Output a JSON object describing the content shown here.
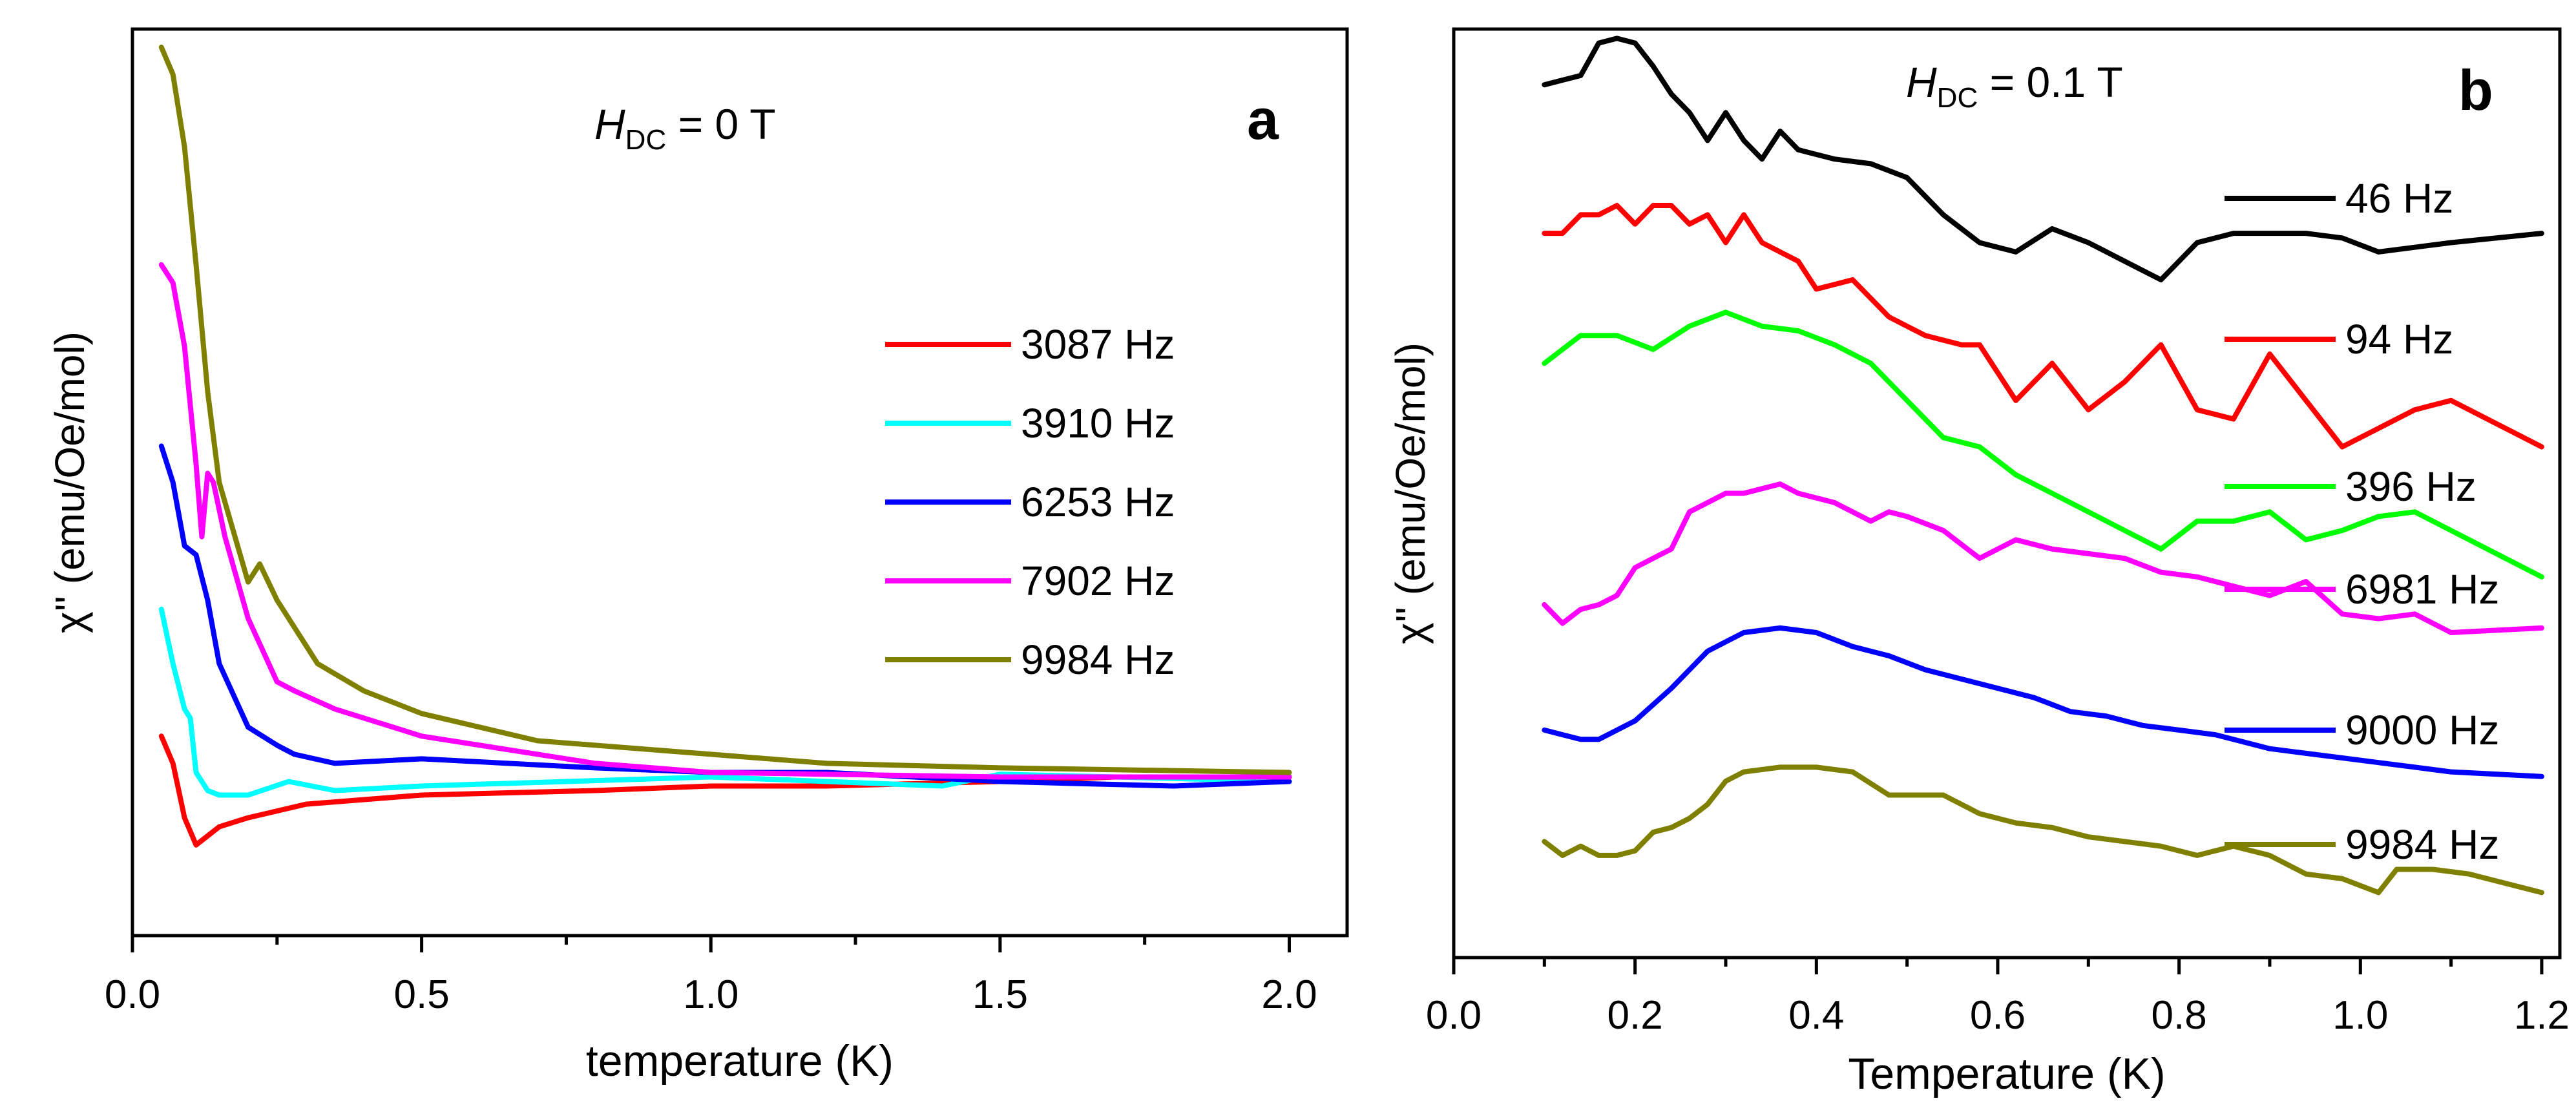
{
  "chart_data": [
    {
      "type": "line",
      "panel_label": "a",
      "annotation": {
        "symbol": "H",
        "subscript": "DC",
        "rest": " = 0 T"
      },
      "xlabel": "temperature (K)",
      "ylabel": "χ'' (emu/Oe/mol)",
      "xlim": [
        0.0,
        2.1
      ],
      "ylim": [
        0.0,
        1.0
      ],
      "xticks": [
        "0.0",
        "0.5",
        "1.0",
        "1.5",
        "2.0"
      ],
      "xtick_values": [
        0.0,
        0.5,
        1.0,
        1.5,
        2.0
      ],
      "y_ticklabels_shown": false,
      "legend_position": "center-right",
      "series": [
        {
          "name": "3087 Hz",
          "color": "#ff0000",
          "x": [
            0.05,
            0.07,
            0.09,
            0.11,
            0.13,
            0.15,
            0.2,
            0.3,
            0.5,
            0.8,
            1.0,
            1.2,
            1.5,
            1.7,
            2.0
          ],
          "y": [
            0.22,
            0.19,
            0.13,
            0.1,
            0.11,
            0.12,
            0.13,
            0.145,
            0.155,
            0.16,
            0.165,
            0.165,
            0.17,
            0.175,
            0.175
          ]
        },
        {
          "name": "3910 Hz",
          "color": "#00ffff",
          "x": [
            0.05,
            0.07,
            0.09,
            0.1,
            0.11,
            0.13,
            0.15,
            0.2,
            0.27,
            0.35,
            0.5,
            1.0,
            1.4,
            1.5,
            1.7,
            2.0
          ],
          "y": [
            0.36,
            0.3,
            0.25,
            0.24,
            0.18,
            0.16,
            0.155,
            0.155,
            0.17,
            0.16,
            0.165,
            0.175,
            0.165,
            0.178,
            0.175,
            0.17
          ]
        },
        {
          "name": "6253 Hz",
          "color": "#0000ff",
          "x": [
            0.05,
            0.07,
            0.09,
            0.11,
            0.13,
            0.15,
            0.2,
            0.25,
            0.28,
            0.35,
            0.5,
            0.8,
            1.0,
            1.2,
            1.5,
            1.8,
            2.0
          ],
          "y": [
            0.54,
            0.5,
            0.43,
            0.42,
            0.37,
            0.3,
            0.23,
            0.21,
            0.2,
            0.19,
            0.195,
            0.185,
            0.18,
            0.18,
            0.17,
            0.165,
            0.17
          ]
        },
        {
          "name": "7902 Hz",
          "color": "#ff00ff",
          "x": [
            0.05,
            0.07,
            0.09,
            0.11,
            0.12,
            0.13,
            0.14,
            0.16,
            0.2,
            0.25,
            0.28,
            0.35,
            0.5,
            0.8,
            1.0,
            1.5,
            2.0
          ],
          "y": [
            0.74,
            0.72,
            0.65,
            0.52,
            0.44,
            0.51,
            0.5,
            0.44,
            0.35,
            0.28,
            0.27,
            0.25,
            0.22,
            0.19,
            0.18,
            0.175,
            0.175
          ]
        },
        {
          "name": "9984 Hz",
          "color": "#808000",
          "x": [
            0.05,
            0.07,
            0.09,
            0.11,
            0.13,
            0.15,
            0.2,
            0.22,
            0.25,
            0.28,
            0.32,
            0.4,
            0.5,
            0.7,
            1.0,
            1.2,
            1.5,
            2.0
          ],
          "y": [
            0.98,
            0.95,
            0.87,
            0.74,
            0.6,
            0.5,
            0.39,
            0.41,
            0.37,
            0.34,
            0.3,
            0.27,
            0.245,
            0.215,
            0.2,
            0.19,
            0.185,
            0.18
          ]
        }
      ]
    },
    {
      "type": "line",
      "panel_label": "b",
      "annotation": {
        "symbol": "H",
        "subscript": "DC",
        "rest": " = 0.1 T"
      },
      "xlabel": "Temperature (K)",
      "ylabel": "χ'' (emu/Oe/mol)",
      "xlim": [
        0.0,
        1.22
      ],
      "ylim": [
        0.0,
        1.0
      ],
      "xticks": [
        "0.0",
        "0.2",
        "0.4",
        "0.6",
        "0.8",
        "1.0",
        "1.2"
      ],
      "xtick_values": [
        0.0,
        0.2,
        0.4,
        0.6,
        0.8,
        1.0,
        1.2
      ],
      "y_ticklabels_shown": false,
      "note": "curves vertically offset for clarity; y in arbitrary offset units",
      "legend_position": "right",
      "series": [
        {
          "name": "46 Hz",
          "color": "#000000",
          "x": [
            0.1,
            0.12,
            0.14,
            0.16,
            0.18,
            0.2,
            0.22,
            0.24,
            0.26,
            0.28,
            0.3,
            0.32,
            0.34,
            0.36,
            0.38,
            0.42,
            0.46,
            0.5,
            0.54,
            0.58,
            0.62,
            0.66,
            0.7,
            0.74,
            0.78,
            0.82,
            0.86,
            0.9,
            0.94,
            0.98,
            1.02,
            1.06,
            1.1,
            1.2
          ],
          "y": [
            0.94,
            0.945,
            0.95,
            0.985,
            0.99,
            0.985,
            0.96,
            0.93,
            0.91,
            0.88,
            0.91,
            0.88,
            0.86,
            0.89,
            0.87,
            0.86,
            0.855,
            0.84,
            0.8,
            0.77,
            0.76,
            0.785,
            0.77,
            0.75,
            0.73,
            0.77,
            0.78,
            0.78,
            0.78,
            0.775,
            0.76,
            0.765,
            0.77,
            0.78
          ]
        },
        {
          "name": "94 Hz",
          "color": "#ff0000",
          "x": [
            0.1,
            0.12,
            0.14,
            0.16,
            0.18,
            0.2,
            0.22,
            0.24,
            0.26,
            0.28,
            0.3,
            0.32,
            0.34,
            0.36,
            0.38,
            0.4,
            0.42,
            0.44,
            0.48,
            0.52,
            0.56,
            0.58,
            0.62,
            0.66,
            0.7,
            0.74,
            0.78,
            0.82,
            0.86,
            0.9,
            0.94,
            0.98,
            1.02,
            1.06,
            1.1,
            1.2
          ],
          "y": [
            0.78,
            0.78,
            0.8,
            0.8,
            0.81,
            0.79,
            0.81,
            0.81,
            0.79,
            0.8,
            0.77,
            0.8,
            0.77,
            0.76,
            0.75,
            0.72,
            0.725,
            0.73,
            0.69,
            0.67,
            0.66,
            0.66,
            0.6,
            0.64,
            0.59,
            0.62,
            0.66,
            0.59,
            0.58,
            0.65,
            0.6,
            0.55,
            0.57,
            0.59,
            0.6,
            0.55
          ]
        },
        {
          "name": "396 Hz",
          "color": "#00ff00",
          "x": [
            0.1,
            0.14,
            0.18,
            0.22,
            0.26,
            0.3,
            0.34,
            0.38,
            0.42,
            0.46,
            0.5,
            0.54,
            0.58,
            0.62,
            0.66,
            0.7,
            0.74,
            0.78,
            0.82,
            0.86,
            0.9,
            0.94,
            0.98,
            1.02,
            1.06,
            1.1,
            1.2
          ],
          "y": [
            0.64,
            0.67,
            0.67,
            0.655,
            0.68,
            0.695,
            0.68,
            0.675,
            0.66,
            0.64,
            0.6,
            0.56,
            0.55,
            0.52,
            0.5,
            0.48,
            0.46,
            0.44,
            0.47,
            0.47,
            0.48,
            0.45,
            0.46,
            0.475,
            0.48,
            0.46,
            0.41
          ]
        },
        {
          "name": "6981 Hz",
          "color": "#ff00ff",
          "x": [
            0.1,
            0.12,
            0.14,
            0.16,
            0.18,
            0.2,
            0.22,
            0.24,
            0.26,
            0.28,
            0.3,
            0.32,
            0.34,
            0.36,
            0.38,
            0.42,
            0.46,
            0.48,
            0.5,
            0.54,
            0.58,
            0.62,
            0.66,
            0.7,
            0.74,
            0.78,
            0.82,
            0.86,
            0.9,
            0.94,
            0.98,
            1.02,
            1.06,
            1.1,
            1.2
          ],
          "y": [
            0.38,
            0.36,
            0.375,
            0.38,
            0.39,
            0.42,
            0.43,
            0.44,
            0.48,
            0.49,
            0.5,
            0.5,
            0.505,
            0.51,
            0.5,
            0.49,
            0.47,
            0.48,
            0.475,
            0.46,
            0.43,
            0.45,
            0.44,
            0.435,
            0.43,
            0.415,
            0.41,
            0.4,
            0.39,
            0.405,
            0.37,
            0.365,
            0.37,
            0.35,
            0.355
          ]
        },
        {
          "name": "9000 Hz",
          "color": "#0000ff",
          "x": [
            0.1,
            0.12,
            0.14,
            0.16,
            0.2,
            0.24,
            0.28,
            0.32,
            0.36,
            0.4,
            0.44,
            0.48,
            0.52,
            0.56,
            0.6,
            0.64,
            0.68,
            0.72,
            0.76,
            0.8,
            0.84,
            0.88,
            0.9,
            0.94,
            0.98,
            1.02,
            1.06,
            1.1,
            1.2
          ],
          "y": [
            0.245,
            0.24,
            0.235,
            0.235,
            0.255,
            0.29,
            0.33,
            0.35,
            0.355,
            0.35,
            0.335,
            0.325,
            0.31,
            0.3,
            0.29,
            0.28,
            0.265,
            0.26,
            0.25,
            0.245,
            0.24,
            0.23,
            0.225,
            0.22,
            0.215,
            0.21,
            0.205,
            0.2,
            0.195
          ]
        },
        {
          "name": "9984 Hz",
          "color": "#808000",
          "x": [
            0.1,
            0.12,
            0.14,
            0.16,
            0.18,
            0.2,
            0.22,
            0.24,
            0.26,
            0.28,
            0.3,
            0.32,
            0.36,
            0.4,
            0.44,
            0.48,
            0.52,
            0.54,
            0.58,
            0.62,
            0.66,
            0.7,
            0.74,
            0.78,
            0.82,
            0.86,
            0.9,
            0.94,
            0.98,
            1.02,
            1.04,
            1.08,
            1.12,
            1.2
          ],
          "y": [
            0.125,
            0.11,
            0.12,
            0.11,
            0.11,
            0.115,
            0.135,
            0.14,
            0.15,
            0.165,
            0.19,
            0.2,
            0.205,
            0.205,
            0.2,
            0.175,
            0.175,
            0.175,
            0.155,
            0.145,
            0.14,
            0.13,
            0.125,
            0.12,
            0.11,
            0.12,
            0.11,
            0.09,
            0.085,
            0.07,
            0.095,
            0.095,
            0.09,
            0.07
          ]
        }
      ]
    }
  ]
}
